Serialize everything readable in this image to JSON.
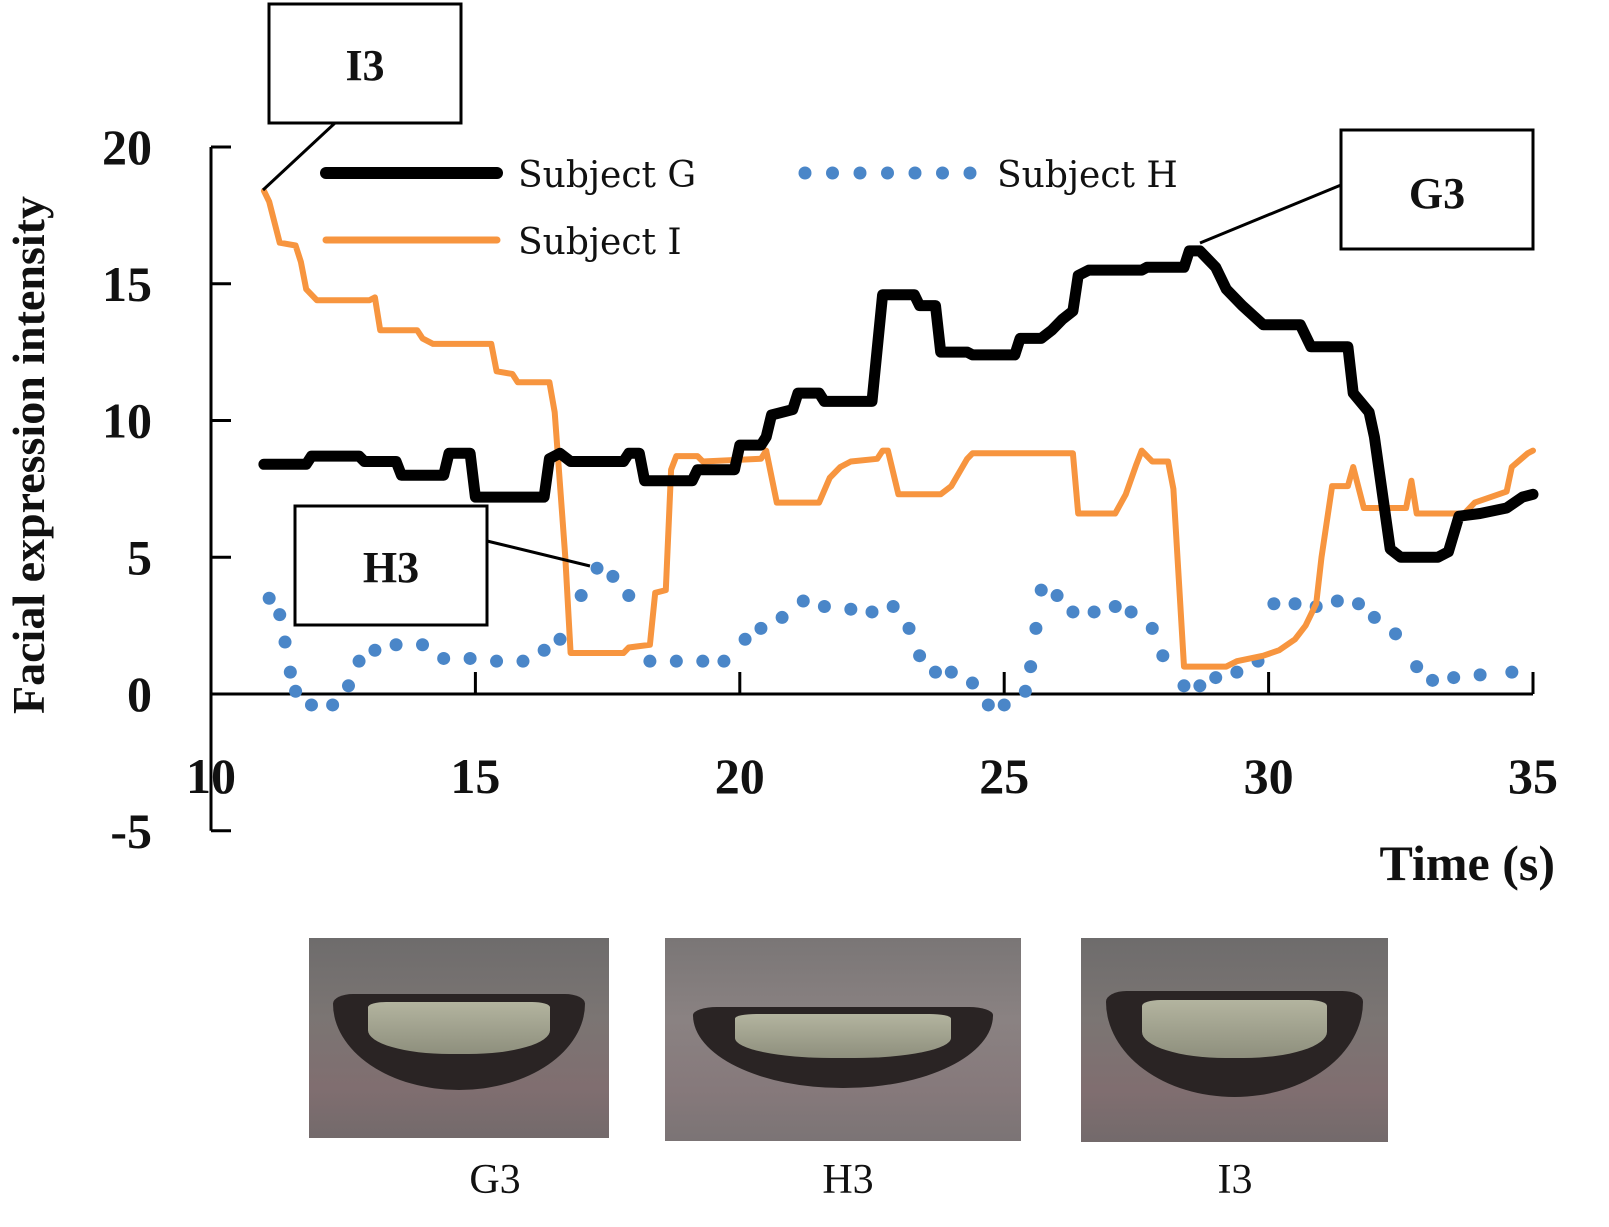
{
  "chart_data": {
    "type": "line",
    "title": "",
    "xlabel": "Time (s)",
    "ylabel": "Facial expression intensity",
    "xlim": [
      10,
      35
    ],
    "ylim": [
      -5,
      20
    ],
    "xticks": [
      "10",
      "15",
      "20",
      "25",
      "30",
      "35"
    ],
    "xtick_values": [
      10,
      15,
      20,
      25,
      30,
      35
    ],
    "yticks": [
      "20",
      "15",
      "10",
      "5",
      "0",
      "-5"
    ],
    "ytick_values": [
      20,
      15,
      10,
      5,
      0,
      -5
    ],
    "legend": {
      "placement": "top",
      "entries": [
        "Subject G",
        "Subject H",
        "Subject I"
      ]
    },
    "series": [
      {
        "name": "Subject G",
        "style": "solid-thick",
        "color": "#000000",
        "x": [
          11.0,
          11.8,
          11.9,
          12.8,
          12.9,
          13.5,
          13.6,
          14.4,
          14.5,
          14.9,
          15.0,
          16.3,
          16.4,
          16.6,
          16.8,
          17.8,
          17.9,
          18.1,
          18.2,
          19.1,
          19.2,
          19.9,
          20.0,
          20.4,
          20.5,
          20.6,
          21.0,
          21.1,
          21.5,
          21.6,
          22.5,
          22.7,
          23.3,
          23.4,
          23.7,
          23.8,
          24.3,
          24.4,
          25.2,
          25.3,
          25.7,
          25.9,
          26.1,
          26.3,
          26.4,
          26.6,
          27.6,
          27.7,
          28.4,
          28.5,
          28.7,
          29.0,
          29.2,
          29.5,
          29.9,
          30.6,
          30.8,
          31.5,
          31.6,
          31.9,
          32.0,
          32.3,
          32.5,
          33.2,
          33.4,
          33.6,
          34.0,
          34.5,
          34.8,
          35.0
        ],
        "y": [
          8.4,
          8.4,
          8.7,
          8.7,
          8.5,
          8.5,
          8.0,
          8.0,
          8.8,
          8.8,
          7.2,
          7.2,
          8.6,
          8.8,
          8.5,
          8.5,
          8.8,
          8.8,
          7.8,
          7.8,
          8.2,
          8.2,
          9.1,
          9.1,
          9.4,
          10.2,
          10.4,
          11.0,
          11.0,
          10.7,
          10.7,
          14.6,
          14.6,
          14.2,
          14.2,
          12.5,
          12.5,
          12.4,
          12.4,
          13.0,
          13.0,
          13.3,
          13.7,
          14.0,
          15.3,
          15.5,
          15.5,
          15.6,
          15.6,
          16.2,
          16.2,
          15.6,
          14.8,
          14.2,
          13.5,
          13.5,
          12.7,
          12.7,
          11.0,
          10.3,
          9.4,
          5.3,
          5.0,
          5.0,
          5.2,
          6.5,
          6.6,
          6.8,
          7.2,
          7.3
        ]
      },
      {
        "name": "Subject H",
        "style": "dotted",
        "color": "#4a86c8",
        "x": [
          11.1,
          11.3,
          11.4,
          11.5,
          11.6,
          11.9,
          12.3,
          12.6,
          12.8,
          13.1,
          13.5,
          14.0,
          14.4,
          14.9,
          15.4,
          15.9,
          16.3,
          16.6,
          17.0,
          17.3,
          17.6,
          17.9,
          18.3,
          18.8,
          19.3,
          19.7,
          20.1,
          20.4,
          20.8,
          21.2,
          21.6,
          22.1,
          22.5,
          22.9,
          23.2,
          23.4,
          23.7,
          24.0,
          24.4,
          24.7,
          25.0,
          25.4,
          25.5,
          25.6,
          25.7,
          26.0,
          26.3,
          26.7,
          27.1,
          27.4,
          27.8,
          28.0,
          28.4,
          28.7,
          29.0,
          29.4,
          29.8,
          30.1,
          30.5,
          30.9,
          31.3,
          31.7,
          32.0,
          32.4,
          32.8,
          33.1,
          33.5,
          34.0,
          34.6
        ],
        "y": [
          3.5,
          2.9,
          1.9,
          0.8,
          0.1,
          -0.4,
          -0.4,
          0.3,
          1.2,
          1.6,
          1.8,
          1.8,
          1.3,
          1.3,
          1.2,
          1.2,
          1.6,
          2.0,
          3.6,
          4.6,
          4.3,
          3.6,
          1.2,
          1.2,
          1.2,
          1.2,
          2.0,
          2.4,
          2.8,
          3.4,
          3.2,
          3.1,
          3.0,
          3.2,
          2.4,
          1.4,
          0.8,
          0.8,
          0.4,
          -0.4,
          -0.4,
          0.1,
          1.0,
          2.4,
          3.8,
          3.6,
          3.0,
          3.0,
          3.2,
          3.0,
          2.4,
          1.4,
          0.3,
          0.3,
          0.6,
          0.8,
          1.2,
          3.3,
          3.3,
          3.2,
          3.4,
          3.3,
          2.8,
          2.2,
          1.0,
          0.5,
          0.6,
          0.7,
          0.8
        ]
      },
      {
        "name": "Subject I",
        "style": "solid",
        "color": "#f7953f",
        "x": [
          11.0,
          11.1,
          11.3,
          11.6,
          11.7,
          11.8,
          12.0,
          13.0,
          13.1,
          13.2,
          13.9,
          14.0,
          14.2,
          15.3,
          15.4,
          15.7,
          15.8,
          16.4,
          16.5,
          16.7,
          16.8,
          17.8,
          17.9,
          18.3,
          18.4,
          18.6,
          18.7,
          18.8,
          19.2,
          19.3,
          20.4,
          20.5,
          20.7,
          21.5,
          21.7,
          21.9,
          22.1,
          22.6,
          22.7,
          22.8,
          23.0,
          23.8,
          24.0,
          24.3,
          24.4,
          26.3,
          26.4,
          27.1,
          27.3,
          27.5,
          27.6,
          27.8,
          28.1,
          28.2,
          28.4,
          29.2,
          29.4,
          29.9,
          30.2,
          30.5,
          30.7,
          30.9,
          31.0,
          31.2,
          31.5,
          31.6,
          31.8,
          32.6,
          32.7,
          32.8,
          33.7,
          33.9,
          34.5,
          34.6,
          34.9,
          35.0
        ],
        "y": [
          18.4,
          18.0,
          16.5,
          16.4,
          15.8,
          14.8,
          14.4,
          14.4,
          14.5,
          13.3,
          13.3,
          13.0,
          12.8,
          12.8,
          11.8,
          11.7,
          11.4,
          11.4,
          10.3,
          5.0,
          1.5,
          1.5,
          1.7,
          1.8,
          3.7,
          3.8,
          8.2,
          8.7,
          8.7,
          8.5,
          8.6,
          8.9,
          7.0,
          7.0,
          7.9,
          8.3,
          8.5,
          8.6,
          8.9,
          8.9,
          7.3,
          7.3,
          7.6,
          8.6,
          8.8,
          8.8,
          6.6,
          6.6,
          7.3,
          8.4,
          8.9,
          8.5,
          8.5,
          7.5,
          1.0,
          1.0,
          1.2,
          1.4,
          1.6,
          2.0,
          2.5,
          3.3,
          5.0,
          7.6,
          7.6,
          8.3,
          6.8,
          6.8,
          7.8,
          6.6,
          6.6,
          7.0,
          7.4,
          8.3,
          8.8,
          8.9
        ]
      }
    ],
    "annotations": [
      {
        "label": "I3",
        "series": "Subject I",
        "x": 11.0,
        "y": 18.4
      },
      {
        "label": "H3",
        "series": "Subject H",
        "x": 17.3,
        "y": 4.6
      },
      {
        "label": "G3",
        "series": "Subject G",
        "x": 28.6,
        "y": 16.2
      }
    ]
  },
  "photos": [
    {
      "caption": "G3"
    },
    {
      "caption": "H3"
    },
    {
      "caption": "I3"
    }
  ]
}
